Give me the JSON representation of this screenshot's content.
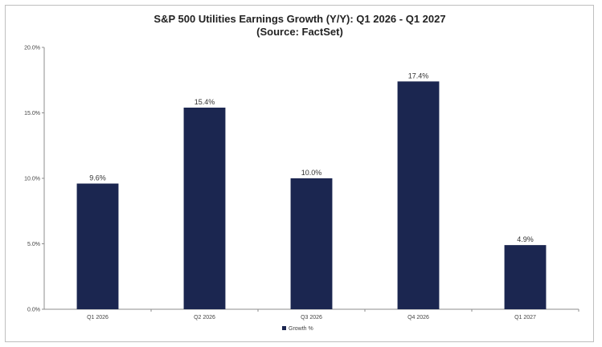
{
  "chart_data": {
    "type": "bar",
    "title": "S&P 500 Utilities  Earnings Growth (Y/Y): Q1 2026 - Q1 2027",
    "subtitle": "(Source: FactSet)",
    "categories": [
      "Q1 2026",
      "Q2 2026",
      "Q3 2026",
      "Q4 2026",
      "Q1 2027"
    ],
    "series": [
      {
        "name": "Growth %",
        "values": [
          9.6,
          15.4,
          10.0,
          17.4,
          4.9
        ],
        "color": "#1b2650"
      }
    ],
    "data_labels": [
      "9.6%",
      "15.4%",
      "10.0%",
      "17.4%",
      "4.9%"
    ],
    "ylim": [
      0,
      20
    ],
    "yticks": [
      0,
      5,
      10,
      15,
      20
    ],
    "ytick_labels": [
      "0.0%",
      "5.0%",
      "10.0%",
      "15.0%",
      "20.0%"
    ],
    "xlabel": "",
    "ylabel": "",
    "legend_position": "bottom-center",
    "grid": false
  }
}
